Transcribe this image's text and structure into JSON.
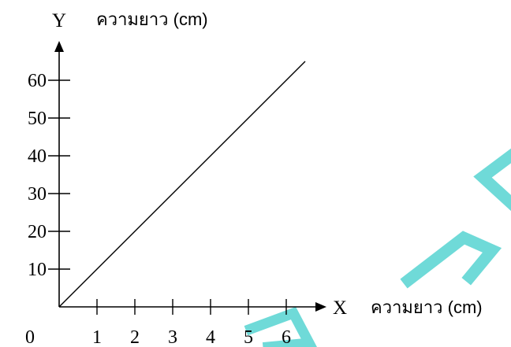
{
  "chart_data": {
    "type": "line",
    "x_axis_letter": "X",
    "y_axis_letter": "Y",
    "x_unit_label": "ความยาว (cm)",
    "y_unit_label": "ความยาว (cm)",
    "origin_label": "0",
    "x_ticks": [
      1,
      2,
      3,
      4,
      5,
      6
    ],
    "y_ticks": [
      10,
      20,
      30,
      40,
      50,
      60
    ],
    "xlim": [
      0,
      6.5
    ],
    "ylim": [
      0,
      65
    ],
    "grid": false,
    "series": [
      {
        "x": [
          0,
          6.5
        ],
        "y": [
          0,
          65
        ]
      }
    ],
    "colors": {
      "axis": "#000000",
      "line": "#000000",
      "watermark": "#5fd6d4"
    }
  }
}
